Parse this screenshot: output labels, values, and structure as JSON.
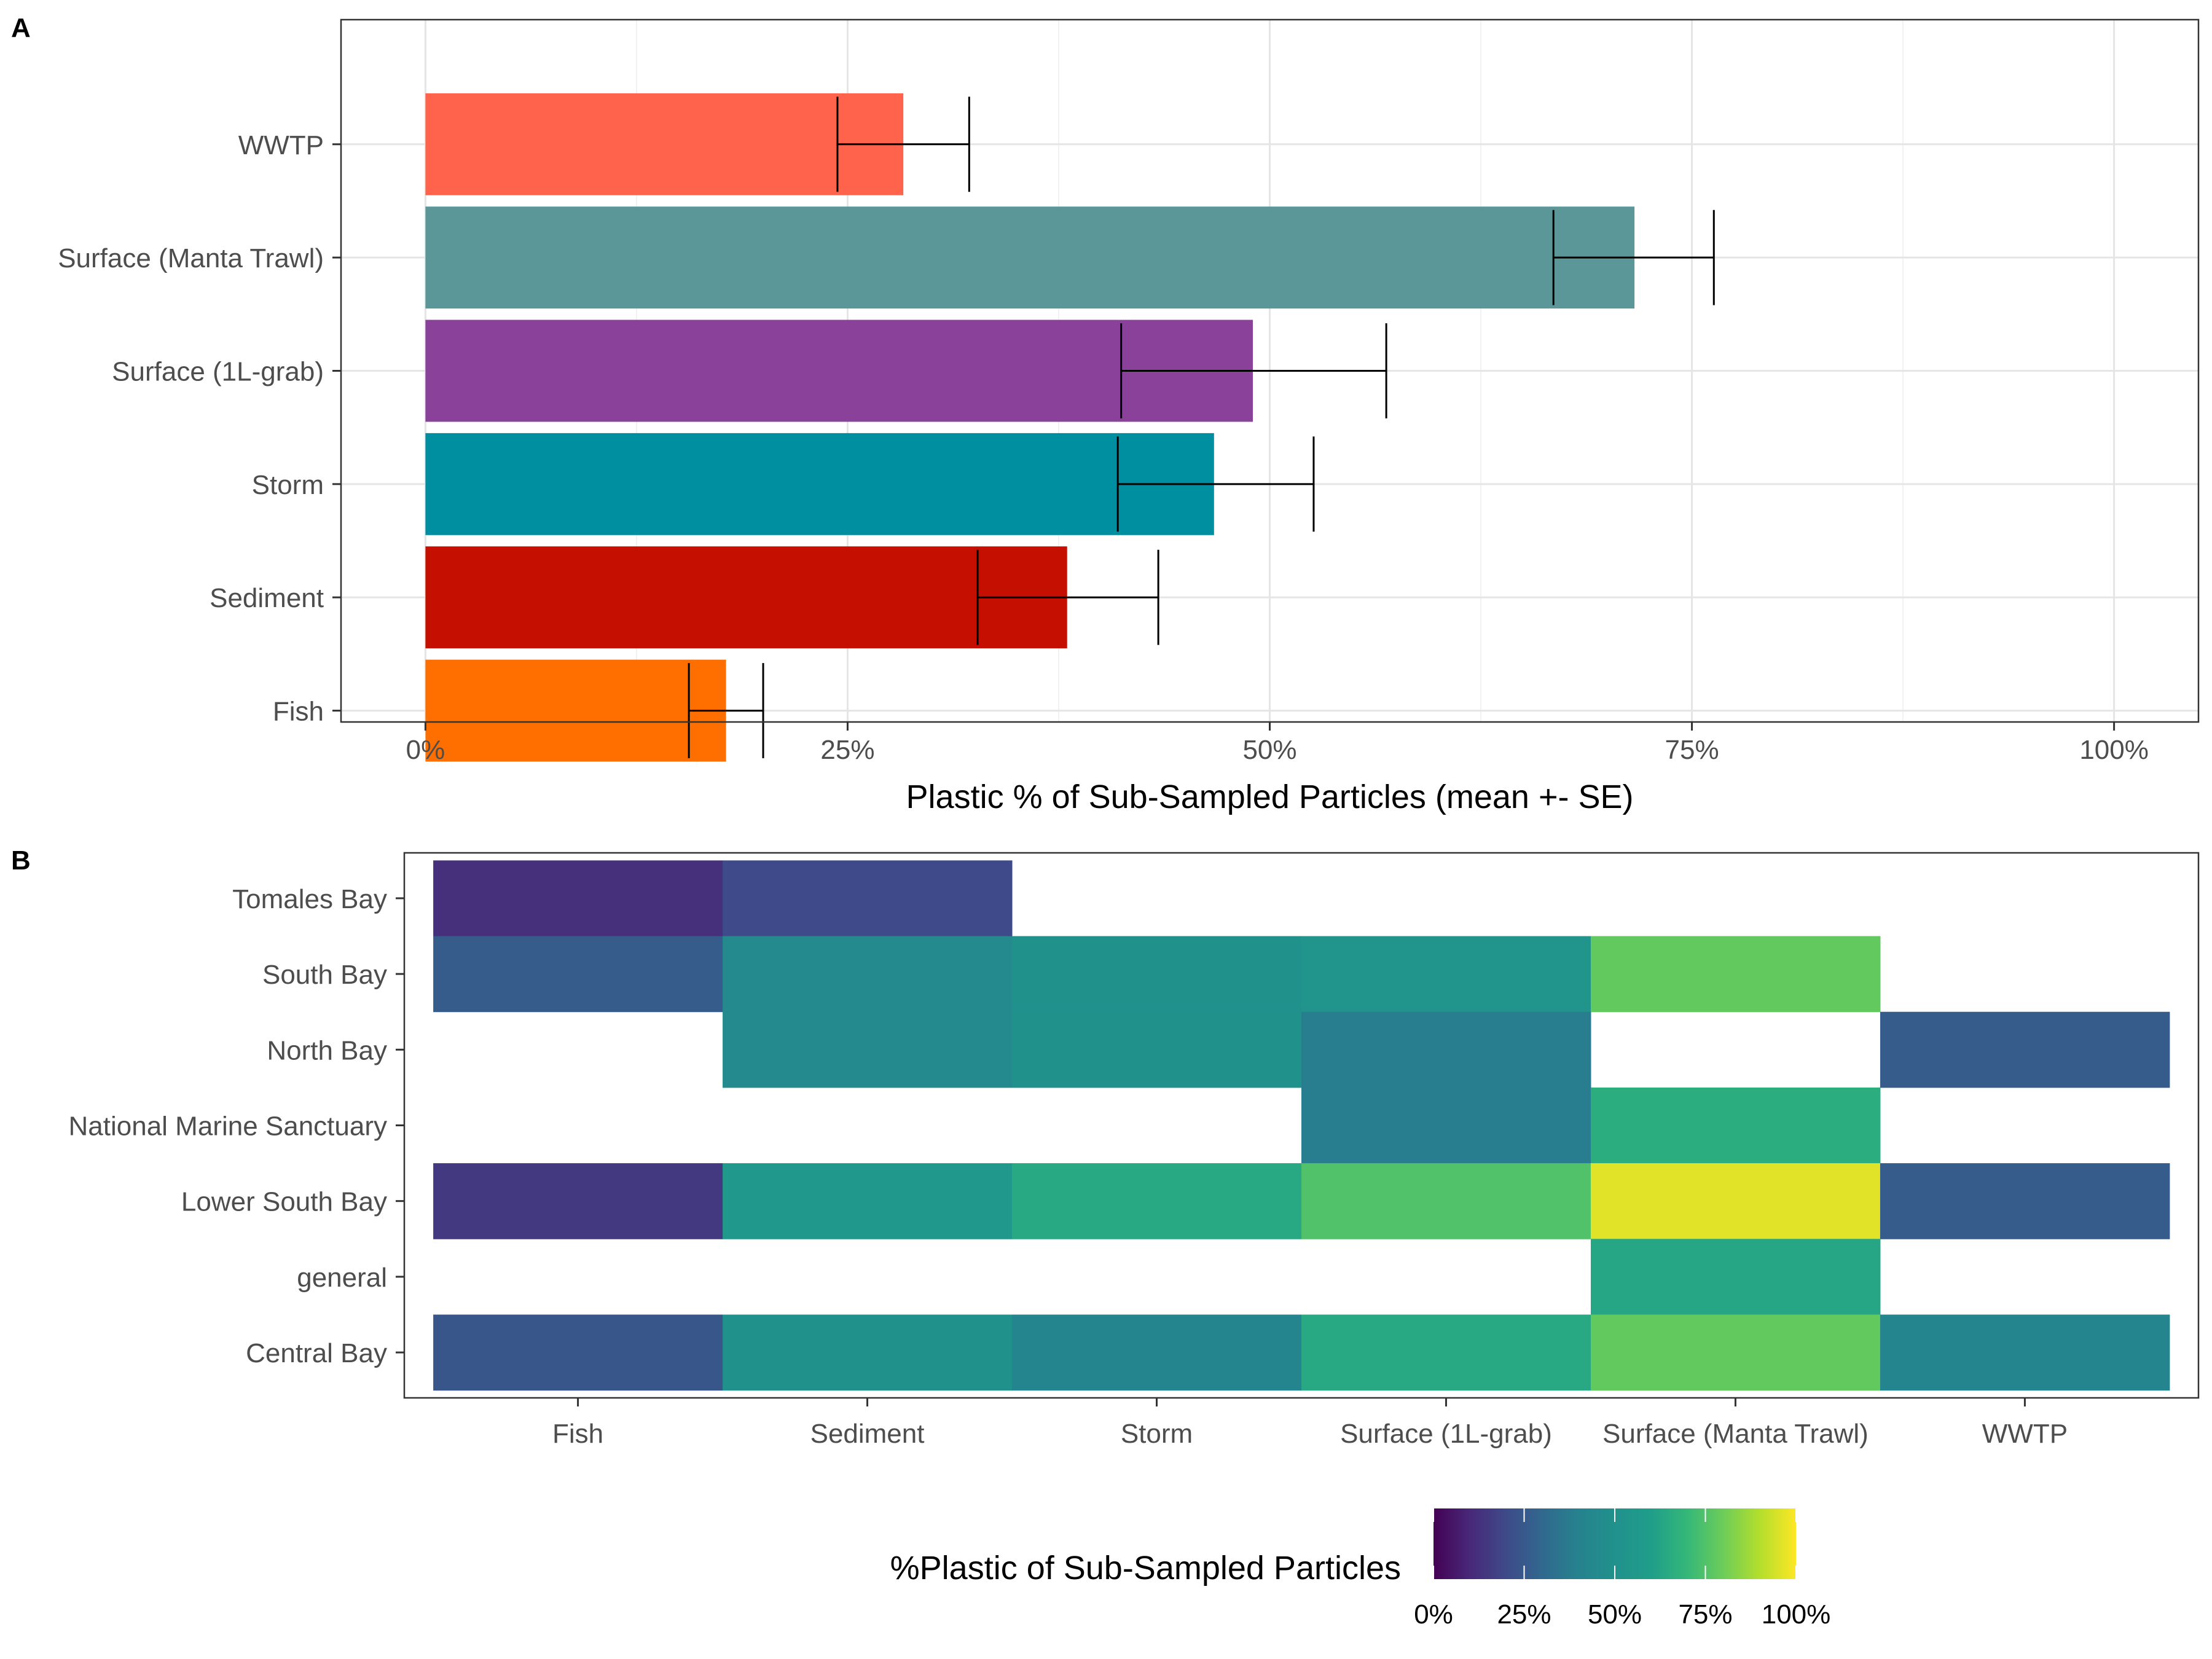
{
  "chart_data": [
    {
      "panel": "A",
      "type": "bar",
      "orientation": "horizontal",
      "categories": [
        "WWTP",
        "Surface (Manta Trawl)",
        "Surface (1L-grab)",
        "Storm",
        "Sediment",
        "Fish"
      ],
      "values": [
        28.3,
        71.6,
        49.0,
        46.7,
        38.0,
        17.8
      ],
      "error_low": [
        24.4,
        66.8,
        41.2,
        41.0,
        32.7,
        15.6
      ],
      "error_high": [
        32.2,
        76.3,
        56.9,
        52.6,
        43.4,
        20.0
      ],
      "colors": [
        "#FF634C",
        "#5B9799",
        "#89419A",
        "#008EA1",
        "#C50F00",
        "#FF6F00"
      ],
      "xlabel": "Plastic % of Sub-Sampled Particles (mean +- SE)",
      "ylabel": "",
      "xlim": [
        -5,
        105
      ],
      "xticks": [
        0,
        25,
        50,
        75,
        100
      ],
      "xtick_labels": [
        "0%",
        "25%",
        "50%",
        "75%",
        "100%"
      ],
      "grid": true
    },
    {
      "panel": "B",
      "type": "heatmap",
      "x_categories": [
        "Fish",
        "Sediment",
        "Storm",
        "Surface (1L-grab)",
        "Surface (Manta Trawl)",
        "WWTP"
      ],
      "y_categories": [
        "Tomales Bay",
        "South Bay",
        "North Bay",
        "National Marine Sanctuary",
        "Lower South Bay",
        "general",
        "Central Bay"
      ],
      "values": [
        [
          12,
          20,
          null,
          null,
          null,
          null
        ],
        [
          26,
          45,
          50,
          52,
          78,
          null
        ],
        [
          null,
          45,
          50,
          38,
          null,
          26
        ],
        [
          null,
          null,
          null,
          38,
          66,
          null
        ],
        [
          15,
          55,
          64,
          75,
          96,
          26
        ],
        [
          null,
          null,
          null,
          null,
          63,
          null
        ],
        [
          24,
          50,
          42,
          64,
          78,
          42
        ]
      ],
      "legend": {
        "title": "%Plastic of Sub-Sampled Particles",
        "ticks": [
          "0%",
          "25%",
          "50%",
          "75%",
          "100%"
        ],
        "colormap": "viridis",
        "range": [
          0,
          100
        ],
        "placement": "bottom"
      }
    }
  ],
  "panels": {
    "a_tag": "A",
    "b_tag": "B"
  },
  "colors": {
    "grid_major": "#E5E5E5",
    "grid_minor": "#F2F2F2",
    "frame": "#333333",
    "tick_text": "#4D4D4D"
  }
}
